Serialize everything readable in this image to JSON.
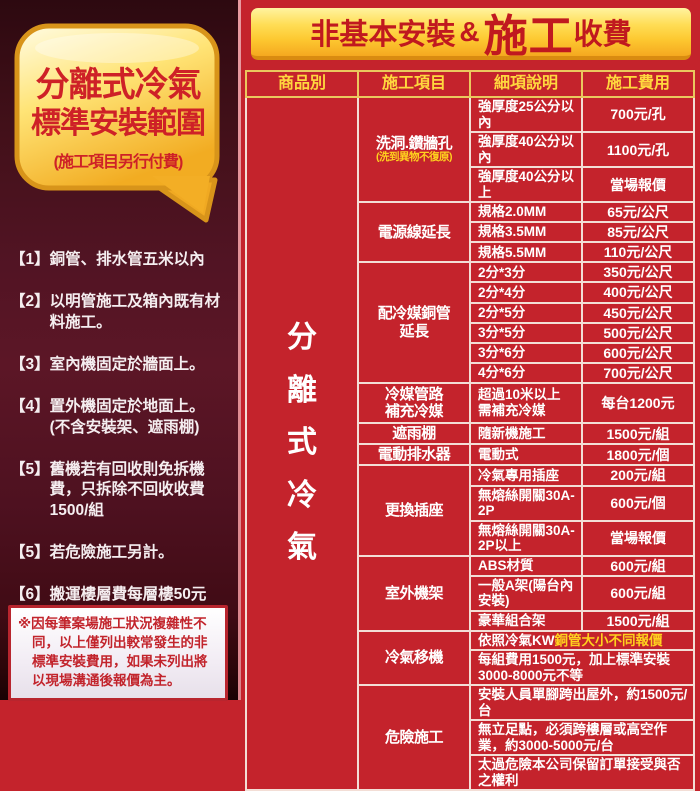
{
  "colors": {
    "panel_red": "#c4232c",
    "maroon": "#4e1120",
    "accent_yellow": "#ffd21e",
    "header_yellow": "#ffd83e",
    "banner_text_red": "#c0191f",
    "bubble_text_red": "#ce2127"
  },
  "left_panel": {
    "bubble": {
      "line1": "分離式冷氣",
      "line2": "標準安裝範圍",
      "line3": "(施工項目另行付費)"
    },
    "items": [
      {
        "num": "【1】",
        "text": "銅管、排水管五米以內"
      },
      {
        "num": "【2】",
        "text": "以明管施工及箱內既有材料施工。"
      },
      {
        "num": "【3】",
        "text": "室內機固定於牆面上。"
      },
      {
        "num": "【4】",
        "text": "置外機固定於地面上。",
        "sub": "(不含安裝架、遮雨棚)"
      },
      {
        "num": "【5】",
        "text": "舊機若有回收則免拆機費，只拆除不回收收費1500/組"
      },
      {
        "num": "【5】",
        "text": "若危險施工另計。"
      },
      {
        "num": "【6】",
        "text": "搬運樓層費每層樓50元"
      }
    ],
    "note": "※因每筆案場施工狀況複雜性不同，以上僅列出較常發生的非標準安裝費用，如果未列出將以現場溝通後報價為主。"
  },
  "banner": {
    "part1": "非基本安裝",
    "amp": "&",
    "part2": "施工",
    "part3": "收費"
  },
  "table": {
    "headers": [
      "商品別",
      "施工項目",
      "細項說明",
      "施工費用"
    ],
    "category": "分離式冷氣",
    "groups": [
      {
        "name": "洗洞.鑽牆孔",
        "sub": "(洗到異物不復原)",
        "rows": [
          {
            "desc": "強厚度25公分以內",
            "fee": "700元/孔"
          },
          {
            "desc": "強厚度40公分以內",
            "fee": "1100元/孔"
          },
          {
            "desc": "強厚度40公分以上",
            "fee": "當場報價",
            "fee_accent": true
          }
        ]
      },
      {
        "name": "電源線延長",
        "rows": [
          {
            "desc": "規格2.0MM",
            "fee": "65元/公尺"
          },
          {
            "desc": "規格3.5MM",
            "fee": "85元/公尺"
          },
          {
            "desc": "規格5.5MM",
            "fee": "110元/公尺"
          }
        ]
      },
      {
        "name": "配冷媒銅管\n延長",
        "rows": [
          {
            "desc": "2分*3分",
            "fee": "350元/公尺"
          },
          {
            "desc": "2分*4分",
            "fee": "400元/公尺"
          },
          {
            "desc": "2分*5分",
            "fee": "450元/公尺"
          },
          {
            "desc": "3分*5分",
            "fee": "500元/公尺"
          },
          {
            "desc": "3分*6分",
            "fee": "600元/公尺"
          },
          {
            "desc": "4分*6分",
            "fee": "700元/公尺"
          }
        ]
      },
      {
        "name": "冷媒管路\n補充冷媒",
        "rows": [
          {
            "desc": "超過10米以上\n需補充冷媒",
            "fee": "每台1200元",
            "tall": true
          }
        ]
      },
      {
        "name": "遮雨棚",
        "rows": [
          {
            "desc": "隨新機施工",
            "fee": "1500元/組"
          }
        ]
      },
      {
        "name": "電動排水器",
        "rows": [
          {
            "desc": "電動式",
            "fee": "1800元/個"
          }
        ]
      },
      {
        "name": "更換插座",
        "rows": [
          {
            "desc": "冷氣專用插座",
            "fee": "200元/組"
          },
          {
            "desc": "無熔絲開關30A-2P",
            "fee": "600元/個"
          },
          {
            "desc": "無熔絲開關30A-2P以上",
            "fee": "當場報價",
            "fee_accent": true
          }
        ]
      },
      {
        "name": "室外機架",
        "rows": [
          {
            "desc": "ABS材質",
            "fee": "600元/組"
          },
          {
            "desc": "一般A架(陽台內安裝)",
            "fee": "600元/組"
          },
          {
            "desc": "豪華組合架",
            "fee": "1500元/組"
          }
        ]
      },
      {
        "name": "冷氣移機",
        "rows": [
          {
            "span": true,
            "parts": [
              {
                "text": "依照冷氣KW",
                "accent": false
              },
              {
                "text": "銅管大小不同報價",
                "accent": true
              }
            ]
          },
          {
            "span": true,
            "desc": "每組費用1500元，加上標準安裝3000-8000元不等"
          }
        ]
      },
      {
        "name": "危險施工",
        "rows": [
          {
            "span": true,
            "desc": "安裝人員單腳跨出屋外，約1500元/台"
          },
          {
            "span": true,
            "desc": "無立足點，必須跨樓層或高空作業，約3000-5000元/台"
          },
          {
            "span": true,
            "desc": "太過危險本公司保留訂單接受與否之權利",
            "accent": true
          }
        ]
      }
    ]
  }
}
